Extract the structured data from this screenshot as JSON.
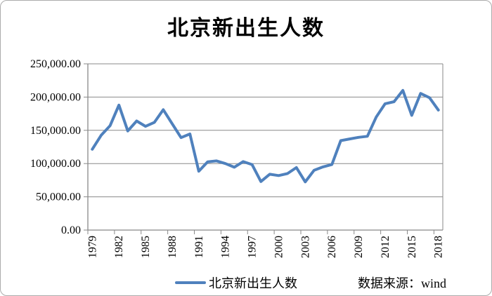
{
  "chart_data": {
    "type": "line",
    "title": "北京新出生人数",
    "legend_label": "北京新出生人数",
    "source_note": "数据来源：wind",
    "legend_position": "bottom-center",
    "grid": "horizontal",
    "ylim": [
      0,
      250000
    ],
    "y_ticks": [
      0,
      50000,
      100000,
      150000,
      200000,
      250000
    ],
    "y_tick_labels": [
      "0.00",
      "50,000.00",
      "100,000.00",
      "150,000.00",
      "200,000.00",
      "250,000.00"
    ],
    "x_tick_labels": [
      "1979",
      "1982",
      "1985",
      "1988",
      "1991",
      "1994",
      "1997",
      "2000",
      "2003",
      "2006",
      "2009",
      "2012",
      "2015",
      "2018"
    ],
    "x": [
      1979,
      1980,
      1981,
      1982,
      1983,
      1984,
      1985,
      1986,
      1987,
      1988,
      1989,
      1990,
      1991,
      1992,
      1993,
      1994,
      1995,
      1996,
      1997,
      1998,
      1999,
      2000,
      2001,
      2002,
      2003,
      2004,
      2005,
      2006,
      2007,
      2008,
      2009,
      2010,
      2011,
      2012,
      2013,
      2014,
      2015,
      2016,
      2017,
      2018
    ],
    "series": [
      {
        "name": "北京新出生人数",
        "color": "#4F81BD",
        "values": [
          121500,
          142500,
          157000,
          188000,
          149000,
          164000,
          156000,
          162000,
          181000,
          160000,
          139000,
          144500,
          88500,
          102500,
          104000,
          100000,
          94500,
          103000,
          98500,
          73000,
          84000,
          82000,
          85000,
          94000,
          72500,
          90000,
          95000,
          98500,
          134500,
          137000,
          139500,
          141000,
          170000,
          190000,
          193000,
          210000,
          172500,
          205500,
          199000,
          180500
        ]
      }
    ]
  },
  "colors": {
    "line": "#4F81BD",
    "grid": "#898989",
    "axis": "#898989",
    "frame_border": "#ababab",
    "text": "#000000"
  }
}
